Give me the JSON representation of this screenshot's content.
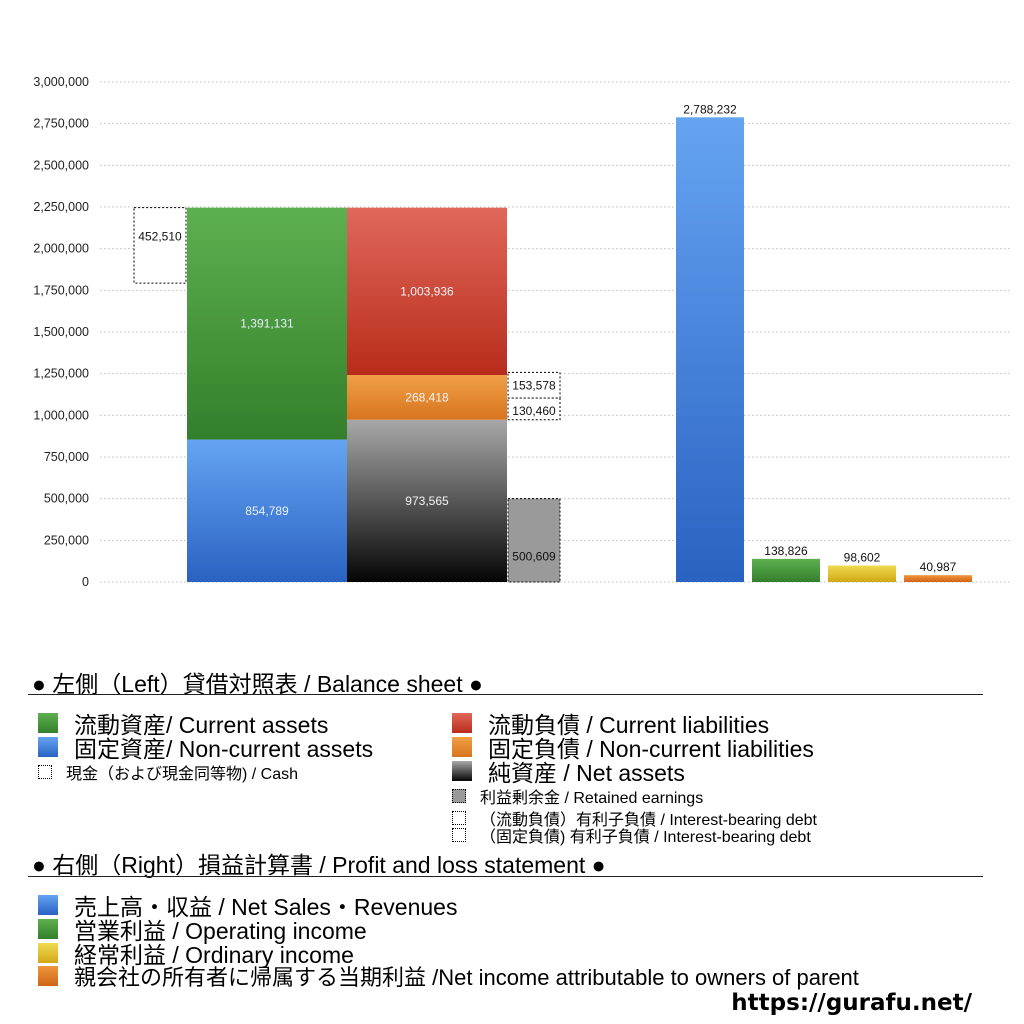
{
  "chart_data": {
    "type": "bar",
    "y_axis": {
      "ticks": [
        "0",
        "250,000",
        "500,000",
        "750,000",
        "1,000,000",
        "1,250,000",
        "1,500,000",
        "1,750,000",
        "2,000,000",
        "2,250,000",
        "2,500,000",
        "2,750,000",
        "3,000,000"
      ],
      "ylim": [
        0,
        3000000
      ],
      "grid": true
    },
    "balance_sheet": {
      "assets": [
        {
          "name": "固定資産/ Non-current assets",
          "value": 854789,
          "label": "854,789",
          "color": "#3a78d6"
        },
        {
          "name": "流動資産/ Current assets",
          "value": 1391131,
          "label": "1,391,131",
          "color": "#4a9e3c"
        }
      ],
      "cash": {
        "name": "現金（および現金同等物) / Cash",
        "value": 452510,
        "label": "452,510"
      },
      "liabilities_and_equity": [
        {
          "name": "純資産 / Net assets",
          "value": 973565,
          "label": "973,565",
          "color": "#555555"
        },
        {
          "name": "固定負債 / Non-current liabilities",
          "value": 268418,
          "label": "268,418",
          "color": "#e58a35"
        },
        {
          "name": "流動負債 /  Current liabilities",
          "value": 1003936,
          "label": "1,003,936",
          "color": "#d84a35"
        }
      ],
      "retained_earnings": {
        "name": "利益剰余金 / Retained earnings",
        "value": 500609,
        "label": "500,609"
      },
      "interest_bearing_debt": [
        {
          "name": "（固定負債) 有利子負債 / Interest-bearing debt",
          "value": 130460,
          "label": "130,460"
        },
        {
          "name": "（流動負債）有利子負債 / Interest-bearing debt",
          "value": 153578,
          "label": "153,578"
        }
      ]
    },
    "profit_and_loss": [
      {
        "name": "売上高・収益 / Net Sales・Revenues",
        "value": 2788232,
        "label": "2,788,232",
        "color": "#3a78d6"
      },
      {
        "name": "営業利益 / Operating income",
        "value": 138826,
        "label": "138,826",
        "color": "#4a9e3c"
      },
      {
        "name": "経常利益 / Ordinary income",
        "value": 98602,
        "label": "98,602",
        "color": "#e0c02e"
      },
      {
        "name": "親会社の所有者に帰属する当期利益 /Net income attributable to owners of parent",
        "value": 40987,
        "label": "40,987",
        "color": "#e07a30"
      }
    ]
  },
  "legend": {
    "left_title": "● 左側（Left）貸借対照表 / Balance sheet ●",
    "right_title": "● 右側（Right）損益計算書 / Profit and loss statement ●",
    "left_items": [
      {
        "label": "流動資産/ Current assets",
        "color": "#4a9e3c"
      },
      {
        "label": "固定資産/ Non-current assets",
        "color": "#3a78d6"
      },
      {
        "label": "現金（および現金同等物) / Cash"
      }
    ],
    "right_items_bs": [
      {
        "label": "流動負債 /  Current liabilities",
        "color": "#d84a35"
      },
      {
        "label": "固定負債 / Non-current liabilities",
        "color": "#e58a35"
      },
      {
        "label": "純資産 / Net assets",
        "color": "#222222"
      },
      {
        "label": "利益剰余金 / Retained earnings",
        "color": "#999999"
      },
      {
        "label": "（流動負債）有利子負債 / Interest-bearing debt"
      },
      {
        "label": "（固定負債) 有利子負債 / Interest-bearing debt"
      }
    ],
    "pl_items": [
      {
        "label": "売上高・収益 / Net Sales・Revenues",
        "color": "#3a78d6"
      },
      {
        "label": "営業利益 / Operating income",
        "color": "#4a9e3c"
      },
      {
        "label": "経常利益 / Ordinary income",
        "color": "#e0c02e"
      },
      {
        "label": "親会社の所有者に帰属する当期利益 /Net income attributable to owners of parent",
        "color": "#e07a30"
      }
    ]
  },
  "footer": {
    "url": "https://gurafu.net/"
  }
}
